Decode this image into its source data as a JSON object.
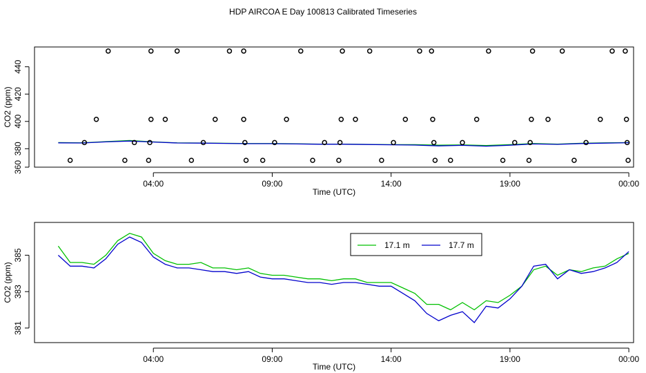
{
  "page_title": "HDP AIRCOA E  Day 100813  Calibrated Timeseries",
  "chart_data": [
    {
      "type": "scatter+line",
      "panel": "top",
      "xlabel": "Time (UTC)",
      "ylabel": "CO2 (ppm)",
      "x_unit": "hours UTC",
      "xlim": [
        -1.0,
        24.2
      ],
      "ylim": [
        366.5,
        454.5
      ],
      "x_ticks": [
        4,
        9,
        14,
        19,
        24
      ],
      "x_tick_labels": [
        "04:00",
        "09:00",
        "14:00",
        "19:00",
        "00:00"
      ],
      "y_ticks": [
        360,
        380,
        400,
        420,
        440
      ],
      "y_tick_labels": [
        "360",
        "380",
        "400",
        "420",
        "440"
      ],
      "grid": false,
      "points": [
        [
          0.5,
          371.5
        ],
        [
          1.1,
          384.5
        ],
        [
          1.6,
          401.5
        ],
        [
          2.1,
          451.5
        ],
        [
          2.8,
          371.5
        ],
        [
          3.2,
          384.5
        ],
        [
          3.8,
          371.5
        ],
        [
          3.85,
          384.5
        ],
        [
          3.9,
          401.5
        ],
        [
          3.9,
          451.5
        ],
        [
          4.5,
          401.5
        ],
        [
          5.0,
          451.5
        ],
        [
          5.6,
          371.5
        ],
        [
          6.1,
          384.5
        ],
        [
          6.6,
          401.5
        ],
        [
          7.2,
          451.5
        ],
        [
          7.8,
          451.5
        ],
        [
          7.8,
          401.5
        ],
        [
          7.85,
          384.5
        ],
        [
          7.9,
          371.5
        ],
        [
          8.6,
          371.5
        ],
        [
          9.1,
          384.5
        ],
        [
          9.6,
          401.5
        ],
        [
          10.2,
          451.5
        ],
        [
          10.7,
          371.5
        ],
        [
          11.2,
          384.5
        ],
        [
          11.8,
          371.5
        ],
        [
          11.85,
          384.5
        ],
        [
          11.9,
          401.5
        ],
        [
          11.95,
          451.5
        ],
        [
          12.5,
          401.5
        ],
        [
          13.1,
          451.5
        ],
        [
          13.6,
          371.5
        ],
        [
          14.1,
          384.5
        ],
        [
          14.6,
          401.5
        ],
        [
          15.2,
          451.5
        ],
        [
          15.7,
          451.5
        ],
        [
          15.75,
          401.5
        ],
        [
          15.8,
          384.5
        ],
        [
          15.85,
          371.5
        ],
        [
          16.5,
          371.5
        ],
        [
          17.0,
          384.5
        ],
        [
          17.6,
          401.5
        ],
        [
          18.1,
          451.5
        ],
        [
          18.7,
          371.5
        ],
        [
          19.2,
          384.5
        ],
        [
          19.8,
          371.5
        ],
        [
          19.85,
          384.5
        ],
        [
          19.9,
          401.5
        ],
        [
          19.95,
          451.5
        ],
        [
          20.6,
          401.5
        ],
        [
          21.2,
          451.5
        ],
        [
          21.7,
          371.5
        ],
        [
          22.2,
          384.5
        ],
        [
          22.8,
          401.5
        ],
        [
          23.3,
          451.5
        ],
        [
          23.85,
          451.5
        ],
        [
          23.9,
          401.5
        ],
        [
          23.93,
          384.5
        ],
        [
          23.97,
          371.5
        ]
      ],
      "series": [
        {
          "color": "#00c000",
          "x": [
            0,
            1,
            2,
            3,
            4,
            5,
            6,
            7,
            8,
            9,
            10,
            11,
            12,
            13,
            14,
            15,
            16,
            17,
            18,
            19,
            20,
            21,
            22,
            23,
            24
          ],
          "values": [
            384.5,
            384.3,
            385.2,
            386.0,
            385.0,
            384.3,
            384.2,
            384.0,
            383.8,
            383.8,
            383.6,
            383.4,
            383.4,
            383.2,
            383.0,
            383.0,
            382.6,
            382.8,
            382.4,
            383.0,
            383.8,
            383.4,
            384.0,
            384.3,
            384.5
          ]
        },
        {
          "color": "#0000cc",
          "x": [
            0,
            1,
            2,
            3,
            4,
            5,
            6,
            7,
            8,
            9,
            10,
            11,
            12,
            13,
            14,
            15,
            16,
            17,
            18,
            19,
            20,
            21,
            22,
            23,
            24
          ],
          "values": [
            384.3,
            384.2,
            385.0,
            385.6,
            384.9,
            384.2,
            384.1,
            383.9,
            383.7,
            383.7,
            383.5,
            383.3,
            383.3,
            383.1,
            382.9,
            382.7,
            382.1,
            382.5,
            381.9,
            382.6,
            383.5,
            383.2,
            383.8,
            384.1,
            384.4
          ]
        }
      ]
    },
    {
      "type": "line",
      "panel": "bottom",
      "xlabel": "Time (UTC)",
      "ylabel": "CO2 (ppm)",
      "x_unit": "hours UTC",
      "xlim": [
        -1.0,
        24.2
      ],
      "ylim": [
        380.2,
        386.8
      ],
      "x_ticks": [
        4,
        9,
        14,
        19,
        24
      ],
      "x_tick_labels": [
        "04:00",
        "09:00",
        "14:00",
        "19:00",
        "00:00"
      ],
      "y_ticks": [
        381,
        383,
        385
      ],
      "y_tick_labels": [
        "381",
        "383",
        "385"
      ],
      "grid": false,
      "legend_placement": "top-right",
      "series": [
        {
          "name": "17.1 m",
          "color": "#00c000",
          "x": [
            0,
            0.5,
            1,
            1.5,
            2,
            2.5,
            3,
            3.5,
            4,
            4.5,
            5,
            5.5,
            6,
            6.5,
            7,
            7.5,
            8,
            8.5,
            9,
            9.5,
            10,
            10.5,
            11,
            11.5,
            12,
            12.5,
            13,
            13.5,
            14,
            14.5,
            15,
            15.5,
            16,
            16.5,
            17,
            17.5,
            18,
            18.5,
            19,
            19.5,
            20,
            20.5,
            21,
            21.5,
            22,
            22.5,
            23,
            23.5,
            24
          ],
          "values": [
            385.5,
            384.6,
            384.6,
            384.5,
            385.0,
            385.8,
            386.2,
            386.0,
            385.1,
            384.7,
            384.5,
            384.5,
            384.6,
            384.3,
            384.3,
            384.2,
            384.3,
            384.0,
            383.9,
            383.9,
            383.8,
            383.7,
            383.7,
            383.6,
            383.7,
            383.7,
            383.5,
            383.5,
            383.5,
            383.2,
            382.9,
            382.3,
            382.3,
            382.0,
            382.4,
            382.0,
            382.5,
            382.4,
            382.8,
            383.3,
            384.2,
            384.4,
            383.9,
            384.2,
            384.1,
            384.3,
            384.4,
            384.8,
            385.1
          ]
        },
        {
          "name": "17.7 m",
          "color": "#0000cc",
          "x": [
            0,
            0.5,
            1,
            1.5,
            2,
            2.5,
            3,
            3.5,
            4,
            4.5,
            5,
            5.5,
            6,
            6.5,
            7,
            7.5,
            8,
            8.5,
            9,
            9.5,
            10,
            10.5,
            11,
            11.5,
            12,
            12.5,
            13,
            13.5,
            14,
            14.5,
            15,
            15.5,
            16,
            16.5,
            17,
            17.5,
            18,
            18.5,
            19,
            19.5,
            20,
            20.5,
            21,
            21.5,
            22,
            22.5,
            23,
            23.5,
            24
          ],
          "values": [
            385.0,
            384.4,
            384.4,
            384.3,
            384.8,
            385.6,
            386.0,
            385.7,
            384.9,
            384.5,
            384.3,
            384.3,
            384.2,
            384.1,
            384.1,
            384.0,
            384.1,
            383.8,
            383.7,
            383.7,
            383.6,
            383.5,
            383.5,
            383.4,
            383.5,
            383.5,
            383.4,
            383.3,
            383.3,
            382.9,
            382.5,
            381.8,
            381.4,
            381.7,
            381.9,
            381.3,
            382.2,
            382.1,
            382.6,
            383.3,
            384.4,
            384.5,
            383.7,
            384.2,
            384.0,
            384.1,
            384.3,
            384.6,
            385.2
          ]
        }
      ]
    }
  ]
}
